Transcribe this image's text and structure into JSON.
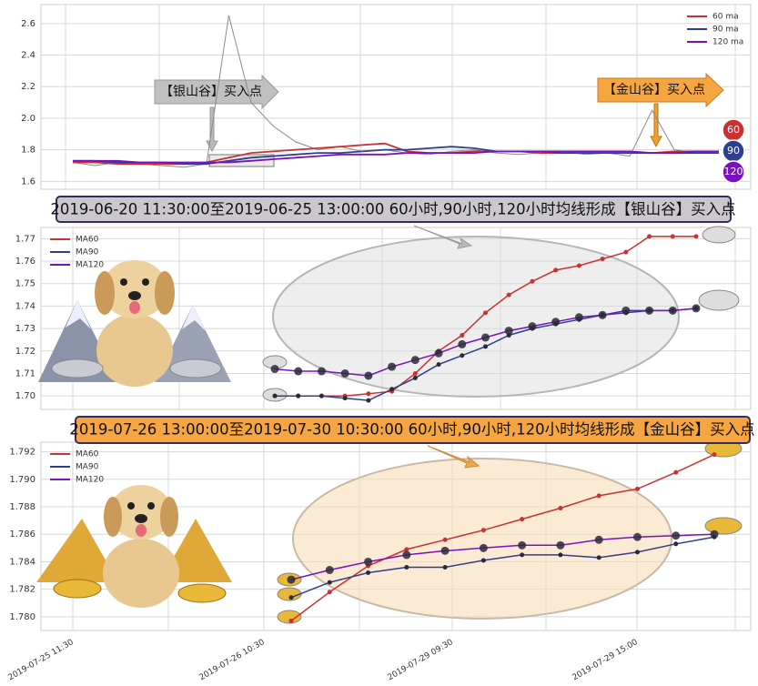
{
  "chart_data": [
    {
      "type": "line",
      "ylim": [
        1.55,
        2.72
      ],
      "yticks": [
        1.6,
        1.8,
        {
          "value": 2,
          "label": "2.0"
        },
        2.2,
        2.4,
        2.6
      ],
      "grid": true,
      "legend": "upper right",
      "color": "#8a8a8a",
      "values": [
        1.72,
        1.7,
        1.72,
        1.71,
        1.7,
        1.69,
        1.71,
        2.65,
        2.1,
        1.95,
        1.85,
        1.8,
        1.82,
        1.79,
        1.8,
        1.78,
        1.77,
        1.79,
        1.8,
        1.78,
        1.77,
        1.78,
        1.79,
        1.77,
        1.78,
        1.76,
        2.05,
        1.8,
        1.78,
        1.79
      ],
      "series": [
        {
          "name": "60 ma",
          "color": "#c83232",
          "values": [
            1.72,
            1.72,
            1.71,
            1.71,
            1.71,
            1.71,
            1.72,
            1.75,
            1.78,
            1.79,
            1.8,
            1.81,
            1.82,
            1.83,
            1.84,
            1.79,
            1.78,
            1.78,
            1.79,
            1.79,
            1.79,
            1.78,
            1.78,
            1.78,
            1.78,
            1.78,
            1.78,
            1.79,
            1.79,
            1.79
          ]
        },
        {
          "name": "90 ma",
          "color": "#2f3f8f",
          "values": [
            1.73,
            1.73,
            1.72,
            1.72,
            1.72,
            1.71,
            1.71,
            1.73,
            1.75,
            1.76,
            1.77,
            1.78,
            1.78,
            1.79,
            1.8,
            1.8,
            1.81,
            1.82,
            1.81,
            1.79,
            1.79,
            1.79,
            1.78,
            1.78,
            1.78,
            1.78,
            1.78,
            1.78,
            1.78,
            1.78
          ]
        },
        {
          "name": "120 ma",
          "color": "#7a10c0",
          "values": [
            1.73,
            1.73,
            1.73,
            1.72,
            1.72,
            1.72,
            1.72,
            1.72,
            1.73,
            1.74,
            1.75,
            1.76,
            1.77,
            1.77,
            1.77,
            1.78,
            1.78,
            1.78,
            1.78,
            1.79,
            1.79,
            1.79,
            1.79,
            1.79,
            1.79,
            1.79,
            1.78,
            1.78,
            1.79,
            1.79
          ]
        }
      ],
      "annotations": [
        "【银山谷】买入点",
        "【金山谷】买入点"
      ],
      "badges": [
        "60",
        "90",
        "120"
      ]
    },
    {
      "type": "line",
      "title": "2019-06-20 11:30:00至2019-06-25 13:00:00 60小时,90小时,120小时均线形成【银山谷】买入点",
      "ylim": [
        1.694,
        1.775
      ],
      "yticks": [
        {
          "value": 1.7,
          "label": "1.70"
        },
        1.71,
        1.72,
        1.73,
        1.74,
        1.75,
        1.76,
        1.77
      ],
      "grid": true,
      "legend": "upper left",
      "series": [
        {
          "name": "MA60",
          "color": "#c83232",
          "values": [
            1.7,
            1.7,
            1.7,
            1.7,
            1.701,
            1.702,
            1.71,
            1.72,
            1.727,
            1.737,
            1.745,
            1.751,
            1.756,
            1.758,
            1.761,
            1.764,
            1.771,
            1.771,
            1.771
          ]
        },
        {
          "name": "MA90",
          "color": "#2f3f8f",
          "values": [
            1.7,
            1.7,
            1.7,
            1.699,
            1.698,
            1.703,
            1.708,
            1.714,
            1.718,
            1.722,
            1.727,
            1.73,
            1.732,
            1.734,
            1.736,
            1.737,
            1.738,
            1.738,
            1.739
          ]
        },
        {
          "name": "MA120",
          "color": "#7a10c0",
          "values": [
            1.712,
            1.711,
            1.711,
            1.71,
            1.709,
            1.713,
            1.716,
            1.719,
            1.723,
            1.726,
            1.729,
            1.731,
            1.733,
            1.735,
            1.736,
            1.738,
            1.738,
            1.738,
            1.739
          ]
        }
      ]
    },
    {
      "type": "line",
      "title": "2019-07-26 13:00:00至2019-07-30 10:30:00 60小时,90小时,120小时均线形成【金山谷】买入点",
      "ylim": [
        1.779,
        1.7927
      ],
      "yticks": [
        {
          "value": 1.78,
          "label": "1.780"
        },
        1.782,
        1.784,
        1.786,
        1.788,
        {
          "value": 1.79,
          "label": "1.790"
        },
        1.792
      ],
      "grid": true,
      "legend": "upper left",
      "series": [
        {
          "name": "MA60",
          "color": "#c83232",
          "values": [
            1.7797,
            1.7818,
            1.7837,
            1.7849,
            1.7856,
            1.7863,
            1.7871,
            1.7879,
            1.7888,
            1.7893,
            1.7905,
            1.7918
          ]
        },
        {
          "name": "MA90",
          "color": "#2f3f8f",
          "values": [
            1.7814,
            1.7825,
            1.7832,
            1.7836,
            1.7836,
            1.7841,
            1.7845,
            1.7845,
            1.7843,
            1.7847,
            1.7853,
            1.7858
          ]
        },
        {
          "name": "MA120",
          "color": "#7a10c0",
          "values": [
            1.7827,
            1.7834,
            1.784,
            1.7845,
            1.7848,
            1.785,
            1.7852,
            1.7852,
            1.7856,
            1.7858,
            1.7859,
            1.786
          ]
        }
      ],
      "x_labels": [
        "2019-07-25 11:30",
        "2019-07-26 10:30",
        "2019-07-29 09:30",
        "2019-07-29 15:00"
      ]
    }
  ]
}
